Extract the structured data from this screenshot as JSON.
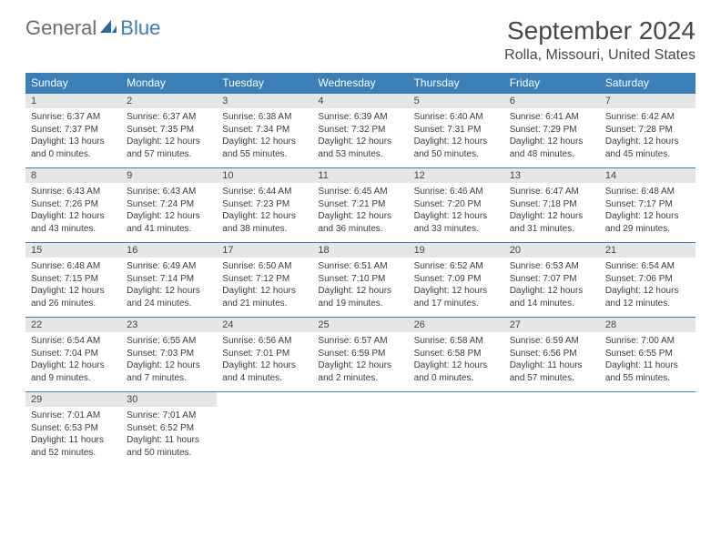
{
  "brand": {
    "general": "General",
    "blue": "Blue"
  },
  "title": "September 2024",
  "location": "Rolla, Missouri, United States",
  "colors": {
    "accent": "#3a7fb8",
    "header_text": "#ffffff",
    "daynum_bg": "#e6e6e6",
    "body_text": "#3b3b3b",
    "title_text": "#474747",
    "logo_gray": "#6b6b6b"
  },
  "typography": {
    "title_pt": 28,
    "location_pt": 16,
    "header_pt": 12,
    "body_pt": 10
  },
  "weekdays": [
    "Sunday",
    "Monday",
    "Tuesday",
    "Wednesday",
    "Thursday",
    "Friday",
    "Saturday"
  ],
  "weeks": [
    [
      {
        "n": "1",
        "sr": "Sunrise: 6:37 AM",
        "ss": "Sunset: 7:37 PM",
        "dl": "Daylight: 13 hours and 0 minutes."
      },
      {
        "n": "2",
        "sr": "Sunrise: 6:37 AM",
        "ss": "Sunset: 7:35 PM",
        "dl": "Daylight: 12 hours and 57 minutes."
      },
      {
        "n": "3",
        "sr": "Sunrise: 6:38 AM",
        "ss": "Sunset: 7:34 PM",
        "dl": "Daylight: 12 hours and 55 minutes."
      },
      {
        "n": "4",
        "sr": "Sunrise: 6:39 AM",
        "ss": "Sunset: 7:32 PM",
        "dl": "Daylight: 12 hours and 53 minutes."
      },
      {
        "n": "5",
        "sr": "Sunrise: 6:40 AM",
        "ss": "Sunset: 7:31 PM",
        "dl": "Daylight: 12 hours and 50 minutes."
      },
      {
        "n": "6",
        "sr": "Sunrise: 6:41 AM",
        "ss": "Sunset: 7:29 PM",
        "dl": "Daylight: 12 hours and 48 minutes."
      },
      {
        "n": "7",
        "sr": "Sunrise: 6:42 AM",
        "ss": "Sunset: 7:28 PM",
        "dl": "Daylight: 12 hours and 45 minutes."
      }
    ],
    [
      {
        "n": "8",
        "sr": "Sunrise: 6:43 AM",
        "ss": "Sunset: 7:26 PM",
        "dl": "Daylight: 12 hours and 43 minutes."
      },
      {
        "n": "9",
        "sr": "Sunrise: 6:43 AM",
        "ss": "Sunset: 7:24 PM",
        "dl": "Daylight: 12 hours and 41 minutes."
      },
      {
        "n": "10",
        "sr": "Sunrise: 6:44 AM",
        "ss": "Sunset: 7:23 PM",
        "dl": "Daylight: 12 hours and 38 minutes."
      },
      {
        "n": "11",
        "sr": "Sunrise: 6:45 AM",
        "ss": "Sunset: 7:21 PM",
        "dl": "Daylight: 12 hours and 36 minutes."
      },
      {
        "n": "12",
        "sr": "Sunrise: 6:46 AM",
        "ss": "Sunset: 7:20 PM",
        "dl": "Daylight: 12 hours and 33 minutes."
      },
      {
        "n": "13",
        "sr": "Sunrise: 6:47 AM",
        "ss": "Sunset: 7:18 PM",
        "dl": "Daylight: 12 hours and 31 minutes."
      },
      {
        "n": "14",
        "sr": "Sunrise: 6:48 AM",
        "ss": "Sunset: 7:17 PM",
        "dl": "Daylight: 12 hours and 29 minutes."
      }
    ],
    [
      {
        "n": "15",
        "sr": "Sunrise: 6:48 AM",
        "ss": "Sunset: 7:15 PM",
        "dl": "Daylight: 12 hours and 26 minutes."
      },
      {
        "n": "16",
        "sr": "Sunrise: 6:49 AM",
        "ss": "Sunset: 7:14 PM",
        "dl": "Daylight: 12 hours and 24 minutes."
      },
      {
        "n": "17",
        "sr": "Sunrise: 6:50 AM",
        "ss": "Sunset: 7:12 PM",
        "dl": "Daylight: 12 hours and 21 minutes."
      },
      {
        "n": "18",
        "sr": "Sunrise: 6:51 AM",
        "ss": "Sunset: 7:10 PM",
        "dl": "Daylight: 12 hours and 19 minutes."
      },
      {
        "n": "19",
        "sr": "Sunrise: 6:52 AM",
        "ss": "Sunset: 7:09 PM",
        "dl": "Daylight: 12 hours and 17 minutes."
      },
      {
        "n": "20",
        "sr": "Sunrise: 6:53 AM",
        "ss": "Sunset: 7:07 PM",
        "dl": "Daylight: 12 hours and 14 minutes."
      },
      {
        "n": "21",
        "sr": "Sunrise: 6:54 AM",
        "ss": "Sunset: 7:06 PM",
        "dl": "Daylight: 12 hours and 12 minutes."
      }
    ],
    [
      {
        "n": "22",
        "sr": "Sunrise: 6:54 AM",
        "ss": "Sunset: 7:04 PM",
        "dl": "Daylight: 12 hours and 9 minutes."
      },
      {
        "n": "23",
        "sr": "Sunrise: 6:55 AM",
        "ss": "Sunset: 7:03 PM",
        "dl": "Daylight: 12 hours and 7 minutes."
      },
      {
        "n": "24",
        "sr": "Sunrise: 6:56 AM",
        "ss": "Sunset: 7:01 PM",
        "dl": "Daylight: 12 hours and 4 minutes."
      },
      {
        "n": "25",
        "sr": "Sunrise: 6:57 AM",
        "ss": "Sunset: 6:59 PM",
        "dl": "Daylight: 12 hours and 2 minutes."
      },
      {
        "n": "26",
        "sr": "Sunrise: 6:58 AM",
        "ss": "Sunset: 6:58 PM",
        "dl": "Daylight: 12 hours and 0 minutes."
      },
      {
        "n": "27",
        "sr": "Sunrise: 6:59 AM",
        "ss": "Sunset: 6:56 PM",
        "dl": "Daylight: 11 hours and 57 minutes."
      },
      {
        "n": "28",
        "sr": "Sunrise: 7:00 AM",
        "ss": "Sunset: 6:55 PM",
        "dl": "Daylight: 11 hours and 55 minutes."
      }
    ],
    [
      {
        "n": "29",
        "sr": "Sunrise: 7:01 AM",
        "ss": "Sunset: 6:53 PM",
        "dl": "Daylight: 11 hours and 52 minutes."
      },
      {
        "n": "30",
        "sr": "Sunrise: 7:01 AM",
        "ss": "Sunset: 6:52 PM",
        "dl": "Daylight: 11 hours and 50 minutes."
      },
      null,
      null,
      null,
      null,
      null
    ]
  ]
}
